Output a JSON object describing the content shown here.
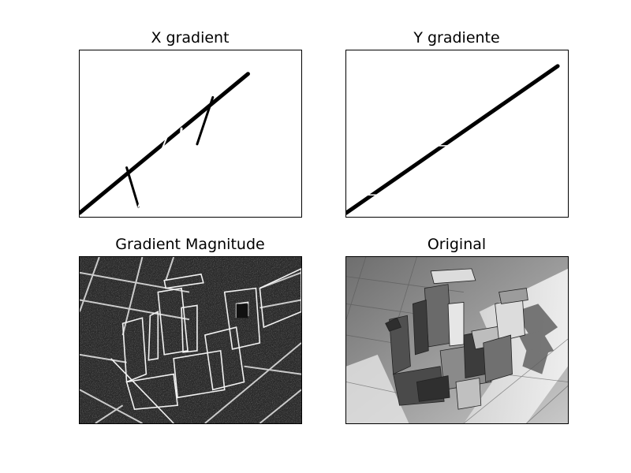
{
  "figure": {
    "panels": [
      {
        "id": "x_gradient",
        "title": "X gradient"
      },
      {
        "id": "y_gradient",
        "title": "Y gradiente"
      },
      {
        "id": "gradient_magnitude",
        "title": "Gradient Magnitude"
      },
      {
        "id": "original",
        "title": "Original"
      }
    ]
  },
  "colors": {
    "figure_background": "#ffffff",
    "frame": "#000000",
    "edge_white": "#ffffff",
    "edge_black": "#000000",
    "magnitude_background": "#2a2a2a",
    "magnitude_edges": "#e6e6e6",
    "floor_light": "#c8c8c8",
    "floor_dark": "#6e6e6e",
    "blocks_dark": "#3c3c3c",
    "blocks_light": "#dcdcdc"
  }
}
